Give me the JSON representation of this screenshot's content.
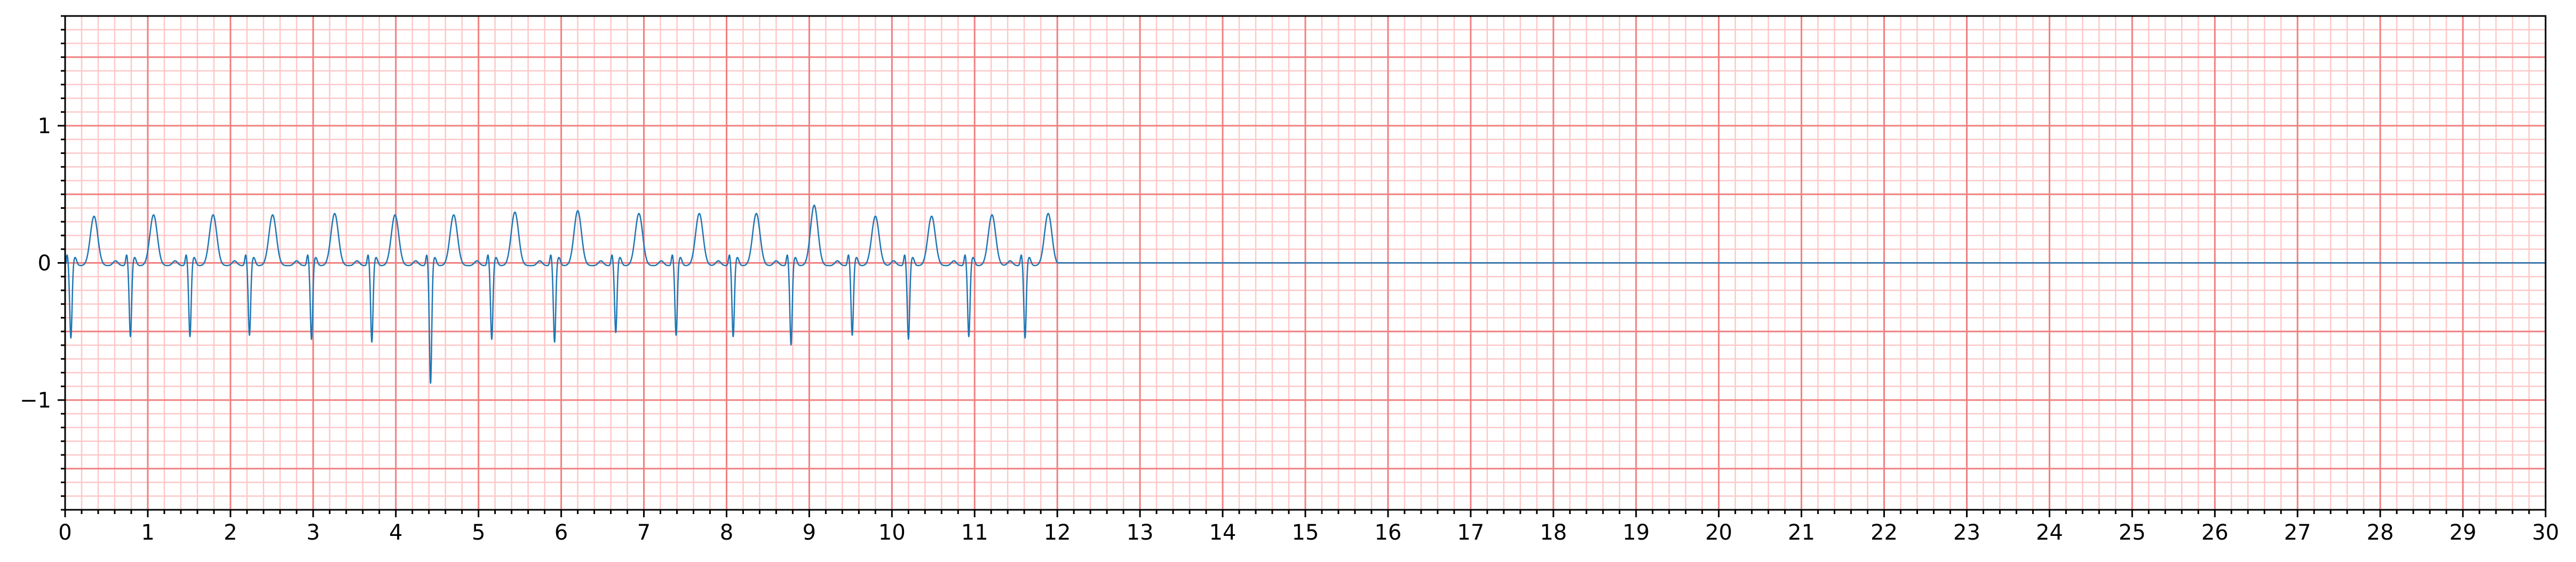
{
  "chart_data": {
    "type": "line",
    "title": "",
    "xlabel": "",
    "ylabel": "",
    "xlim": [
      0,
      30
    ],
    "ylim": [
      -1.8,
      1.8
    ],
    "x_ticks": [
      0,
      1,
      2,
      3,
      4,
      5,
      6,
      7,
      8,
      9,
      10,
      11,
      12,
      13,
      14,
      15,
      16,
      17,
      18,
      19,
      20,
      21,
      22,
      23,
      24,
      25,
      26,
      27,
      28,
      29,
      30
    ],
    "x_tick_labels": [
      "0",
      "1",
      "2",
      "3",
      "4",
      "5",
      "6",
      "7",
      "8",
      "9",
      "10",
      "11",
      "12",
      "13",
      "14",
      "15",
      "16",
      "17",
      "18",
      "19",
      "20",
      "21",
      "22",
      "23",
      "24",
      "25",
      "26",
      "27",
      "28",
      "29",
      "30"
    ],
    "y_ticks": [
      -1,
      0,
      1
    ],
    "y_tick_labels": [
      "−1",
      "0",
      "1"
    ],
    "grid": "on (ECG paper: major every 1 unit / 0.5 mV, minor every 0.2 / 0.1)",
    "legend": "none",
    "colors": {
      "signal": "#1f77b4",
      "major_grid": "#f08080",
      "minor_grid": "#ffc8c8",
      "axes": "#000000"
    },
    "series": [
      {
        "beat_times": [
          0.07,
          0.79,
          1.51,
          2.23,
          2.98,
          3.71,
          4.42,
          5.16,
          5.92,
          6.66,
          7.39,
          8.08,
          8.78,
          9.52,
          10.2,
          10.93,
          11.61
        ],
        "q_depths": [
          -0.57,
          -0.56,
          -0.56,
          -0.55,
          -0.58,
          -0.6,
          -0.9,
          -0.58,
          -0.6,
          -0.53,
          -0.55,
          -0.56,
          -0.62,
          -0.55,
          -0.58,
          -0.56,
          -0.57
        ],
        "t_peaks": [
          0.34,
          0.35,
          0.35,
          0.35,
          0.36,
          0.35,
          0.35,
          0.37,
          0.38,
          0.36,
          0.36,
          0.36,
          0.42,
          0.34,
          0.34,
          0.35,
          0.36
        ],
        "signal_end": 12,
        "flat_value": 0
      }
    ]
  }
}
